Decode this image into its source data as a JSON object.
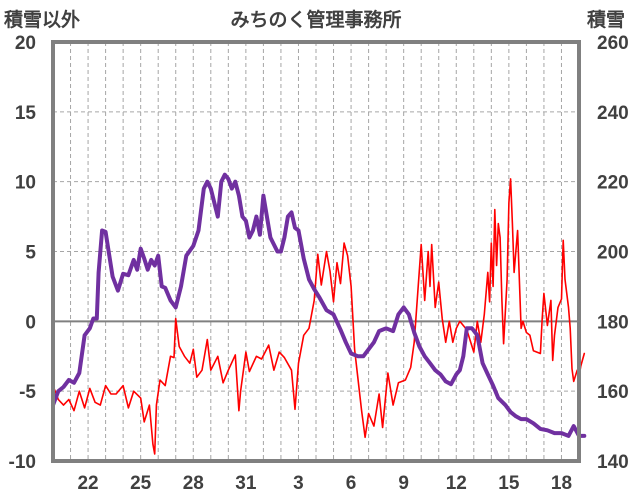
{
  "chart_data": {
    "type": "line",
    "title": "みちのく管理事務所",
    "left_axis_label": "積雪以外",
    "right_axis_label": "積雪",
    "left_ylim": [
      -10,
      20
    ],
    "right_ylim": [
      140,
      260
    ],
    "left_ticks": [
      "20",
      "15",
      "10",
      "5",
      "0",
      "-5",
      "-10"
    ],
    "right_ticks": [
      "260",
      "240",
      "220",
      "200",
      "180",
      "160",
      "140"
    ],
    "x_tick_labels": [
      "22",
      "25",
      "28",
      "31",
      "3",
      "6",
      "9",
      "12",
      "15",
      "18"
    ],
    "x_range": [
      20,
      50
    ],
    "x_tick_positions": [
      22,
      25,
      28,
      31,
      34,
      37,
      40,
      43,
      46,
      49
    ],
    "grid": true,
    "colors": {
      "temperature": "#ff0000",
      "snow_depth": "#7030a0",
      "frame": "#808080"
    },
    "series": [
      {
        "axis": "left",
        "color": "#ff0000",
        "points": [
          [
            20.0,
            -4.6
          ],
          [
            20.3,
            -5.6
          ],
          [
            20.6,
            -6.0
          ],
          [
            20.9,
            -5.6
          ],
          [
            21.2,
            -6.4
          ],
          [
            21.5,
            -5.0
          ],
          [
            21.8,
            -6.2
          ],
          [
            22.1,
            -4.8
          ],
          [
            22.4,
            -5.8
          ],
          [
            22.7,
            -6.0
          ],
          [
            23.0,
            -4.6
          ],
          [
            23.3,
            -5.2
          ],
          [
            23.6,
            -5.2
          ],
          [
            24.0,
            -4.6
          ],
          [
            24.3,
            -6.2
          ],
          [
            24.6,
            -5.0
          ],
          [
            25.0,
            -5.5
          ],
          [
            25.2,
            -7.2
          ],
          [
            25.5,
            -6.0
          ],
          [
            25.7,
            -8.8
          ],
          [
            25.8,
            -9.5
          ],
          [
            25.9,
            -6.0
          ],
          [
            26.1,
            -4.2
          ],
          [
            26.4,
            -4.6
          ],
          [
            26.7,
            -2.5
          ],
          [
            26.9,
            -2.6
          ],
          [
            27.0,
            0.2
          ],
          [
            27.2,
            -1.8
          ],
          [
            27.5,
            -2.5
          ],
          [
            27.8,
            -3.0
          ],
          [
            28.0,
            -2.0
          ],
          [
            28.2,
            -4.0
          ],
          [
            28.5,
            -3.5
          ],
          [
            28.8,
            -1.3
          ],
          [
            29.0,
            -3.5
          ],
          [
            29.4,
            -2.5
          ],
          [
            29.7,
            -4.4
          ],
          [
            30.0,
            -3.5
          ],
          [
            30.4,
            -2.4
          ],
          [
            30.6,
            -6.4
          ],
          [
            30.7,
            -5.0
          ],
          [
            31.0,
            -2.2
          ],
          [
            31.2,
            -3.6
          ],
          [
            31.6,
            -2.5
          ],
          [
            31.9,
            -2.7
          ],
          [
            32.3,
            -1.7
          ],
          [
            32.6,
            -3.5
          ],
          [
            32.9,
            -2.2
          ],
          [
            33.2,
            -2.6
          ],
          [
            33.6,
            -3.5
          ],
          [
            33.8,
            -6.3
          ],
          [
            34.0,
            -3.0
          ],
          [
            34.3,
            -1.0
          ],
          [
            34.6,
            -0.5
          ],
          [
            34.9,
            1.5
          ],
          [
            35.1,
            4.8
          ],
          [
            35.3,
            2.6
          ],
          [
            35.6,
            5.0
          ],
          [
            35.8,
            3.6
          ],
          [
            36.0,
            1.4
          ],
          [
            36.2,
            4.2
          ],
          [
            36.4,
            2.7
          ],
          [
            36.6,
            5.6
          ],
          [
            36.8,
            4.7
          ],
          [
            37.0,
            2.5
          ],
          [
            37.2,
            -2.0
          ],
          [
            37.4,
            -4.2
          ],
          [
            37.6,
            -6.4
          ],
          [
            37.8,
            -8.3
          ],
          [
            38.0,
            -6.6
          ],
          [
            38.3,
            -7.5
          ],
          [
            38.6,
            -5.2
          ],
          [
            38.8,
            -7.6
          ],
          [
            39.1,
            -3.7
          ],
          [
            39.4,
            -6.0
          ],
          [
            39.7,
            -4.4
          ],
          [
            40.1,
            -4.2
          ],
          [
            40.4,
            -3.3
          ],
          [
            40.6,
            -1.5
          ],
          [
            40.8,
            2.0
          ],
          [
            41.0,
            5.5
          ],
          [
            41.2,
            1.5
          ],
          [
            41.4,
            5.0
          ],
          [
            41.5,
            2.5
          ],
          [
            41.6,
            5.5
          ],
          [
            41.8,
            1.0
          ],
          [
            42.0,
            2.8
          ],
          [
            42.2,
            0.2
          ],
          [
            42.4,
            -1.5
          ],
          [
            42.6,
            0.0
          ],
          [
            42.8,
            -1.5
          ],
          [
            43.0,
            -0.5
          ],
          [
            43.2,
            0.0
          ],
          [
            43.4,
            -0.3
          ],
          [
            43.6,
            -0.6
          ],
          [
            44.0,
            -2.2
          ],
          [
            44.2,
            0.0
          ],
          [
            44.4,
            -1.5
          ],
          [
            44.6,
            0.5
          ],
          [
            44.8,
            3.5
          ],
          [
            44.9,
            1.4
          ],
          [
            45.0,
            5.6
          ],
          [
            45.1,
            2.5
          ],
          [
            45.2,
            8.0
          ],
          [
            45.3,
            4.0
          ],
          [
            45.4,
            7.0
          ],
          [
            45.5,
            6.0
          ],
          [
            45.6,
            1.5
          ],
          [
            45.7,
            -1.6
          ],
          [
            45.9,
            3.0
          ],
          [
            46.0,
            8.5
          ],
          [
            46.1,
            10.2
          ],
          [
            46.2,
            7.0
          ],
          [
            46.3,
            3.5
          ],
          [
            46.5,
            6.5
          ],
          [
            46.7,
            -0.5
          ],
          [
            46.8,
            0.0
          ],
          [
            47.0,
            -0.8
          ],
          [
            47.2,
            -1.0
          ],
          [
            47.4,
            -2.1
          ],
          [
            47.6,
            -2.2
          ],
          [
            47.8,
            -2.3
          ],
          [
            47.9,
            0.2
          ],
          [
            48.0,
            2.0
          ],
          [
            48.2,
            -0.3
          ],
          [
            48.4,
            1.5
          ],
          [
            48.5,
            -2.8
          ],
          [
            48.6,
            -1.0
          ],
          [
            48.8,
            1.0
          ],
          [
            49.0,
            1.6
          ],
          [
            49.1,
            5.8
          ],
          [
            49.2,
            3.0
          ],
          [
            49.4,
            1.0
          ],
          [
            49.5,
            -0.5
          ],
          [
            49.6,
            -3.4
          ],
          [
            49.7,
            -4.3
          ],
          [
            49.9,
            -3.5
          ],
          [
            50.0,
            -4.0
          ],
          [
            50.1,
            -3.2
          ],
          [
            50.3,
            -2.3
          ]
        ]
      },
      {
        "axis": "left",
        "color": "#7030a0",
        "points": [
          [
            20.0,
            -6.0
          ],
          [
            20.3,
            -5.0
          ],
          [
            20.6,
            -4.7
          ],
          [
            20.9,
            -4.2
          ],
          [
            21.2,
            -4.4
          ],
          [
            21.5,
            -3.7
          ],
          [
            21.8,
            -1.0
          ],
          [
            22.1,
            -0.5
          ],
          [
            22.3,
            0.2
          ],
          [
            22.5,
            0.2
          ],
          [
            22.6,
            3.5
          ],
          [
            22.8,
            6.5
          ],
          [
            23.0,
            6.4
          ],
          [
            23.2,
            4.8
          ],
          [
            23.4,
            3.2
          ],
          [
            23.7,
            2.2
          ],
          [
            24.0,
            3.4
          ],
          [
            24.3,
            3.3
          ],
          [
            24.6,
            4.4
          ],
          [
            24.8,
            3.7
          ],
          [
            25.0,
            5.2
          ],
          [
            25.2,
            4.5
          ],
          [
            25.4,
            3.7
          ],
          [
            25.6,
            4.4
          ],
          [
            25.8,
            4.0
          ],
          [
            26.0,
            4.7
          ],
          [
            26.2,
            2.5
          ],
          [
            26.4,
            2.4
          ],
          [
            26.7,
            1.5
          ],
          [
            27.0,
            1.0
          ],
          [
            27.3,
            2.5
          ],
          [
            27.6,
            4.7
          ],
          [
            28.0,
            5.4
          ],
          [
            28.3,
            6.5
          ],
          [
            28.6,
            9.5
          ],
          [
            28.8,
            10.0
          ],
          [
            29.0,
            9.5
          ],
          [
            29.2,
            8.5
          ],
          [
            29.4,
            7.5
          ],
          [
            29.6,
            10.0
          ],
          [
            29.8,
            10.5
          ],
          [
            30.0,
            10.2
          ],
          [
            30.2,
            9.5
          ],
          [
            30.4,
            10.0
          ],
          [
            30.6,
            9.0
          ],
          [
            30.8,
            7.5
          ],
          [
            31.0,
            7.2
          ],
          [
            31.2,
            6.0
          ],
          [
            31.4,
            6.5
          ],
          [
            31.6,
            7.5
          ],
          [
            31.8,
            6.2
          ],
          [
            32.0,
            9.0
          ],
          [
            32.2,
            7.5
          ],
          [
            32.4,
            6.0
          ],
          [
            32.6,
            5.5
          ],
          [
            32.8,
            5.0
          ],
          [
            33.0,
            5.0
          ],
          [
            33.2,
            6.0
          ],
          [
            33.4,
            7.5
          ],
          [
            33.6,
            7.8
          ],
          [
            33.8,
            6.7
          ],
          [
            34.0,
            6.5
          ],
          [
            34.3,
            4.5
          ],
          [
            34.6,
            3.0
          ],
          [
            34.9,
            2.3
          ],
          [
            35.2,
            1.7
          ],
          [
            35.6,
            0.8
          ],
          [
            36.0,
            0.5
          ],
          [
            36.4,
            -0.6
          ],
          [
            36.7,
            -1.5
          ],
          [
            37.0,
            -2.3
          ],
          [
            37.4,
            -2.5
          ],
          [
            37.7,
            -2.5
          ],
          [
            38.0,
            -2.0
          ],
          [
            38.3,
            -1.5
          ],
          [
            38.6,
            -0.7
          ],
          [
            39.0,
            -0.5
          ],
          [
            39.4,
            -0.7
          ],
          [
            39.7,
            0.5
          ],
          [
            40.0,
            1.0
          ],
          [
            40.3,
            0.5
          ],
          [
            40.6,
            -0.8
          ],
          [
            40.9,
            -1.8
          ],
          [
            41.2,
            -2.5
          ],
          [
            41.5,
            -3.0
          ],
          [
            41.8,
            -3.5
          ],
          [
            42.1,
            -3.8
          ],
          [
            42.4,
            -4.3
          ],
          [
            42.7,
            -4.5
          ],
          [
            43.0,
            -3.8
          ],
          [
            43.2,
            -3.5
          ],
          [
            43.4,
            -2.5
          ],
          [
            43.6,
            -0.5
          ],
          [
            43.9,
            -0.5
          ],
          [
            44.2,
            -1.0
          ],
          [
            44.5,
            -3.0
          ],
          [
            44.8,
            -3.8
          ],
          [
            45.1,
            -4.6
          ],
          [
            45.4,
            -5.5
          ],
          [
            45.8,
            -6.0
          ],
          [
            46.1,
            -6.5
          ],
          [
            46.4,
            -6.8
          ],
          [
            46.7,
            -7.0
          ],
          [
            47.0,
            -7.0
          ],
          [
            47.4,
            -7.3
          ],
          [
            47.8,
            -7.7
          ],
          [
            48.2,
            -7.8
          ],
          [
            48.6,
            -8.0
          ],
          [
            49.0,
            -8.0
          ],
          [
            49.4,
            -8.2
          ],
          [
            49.7,
            -7.5
          ],
          [
            50.0,
            -8.2
          ],
          [
            50.3,
            -8.2
          ]
        ]
      }
    ]
  }
}
